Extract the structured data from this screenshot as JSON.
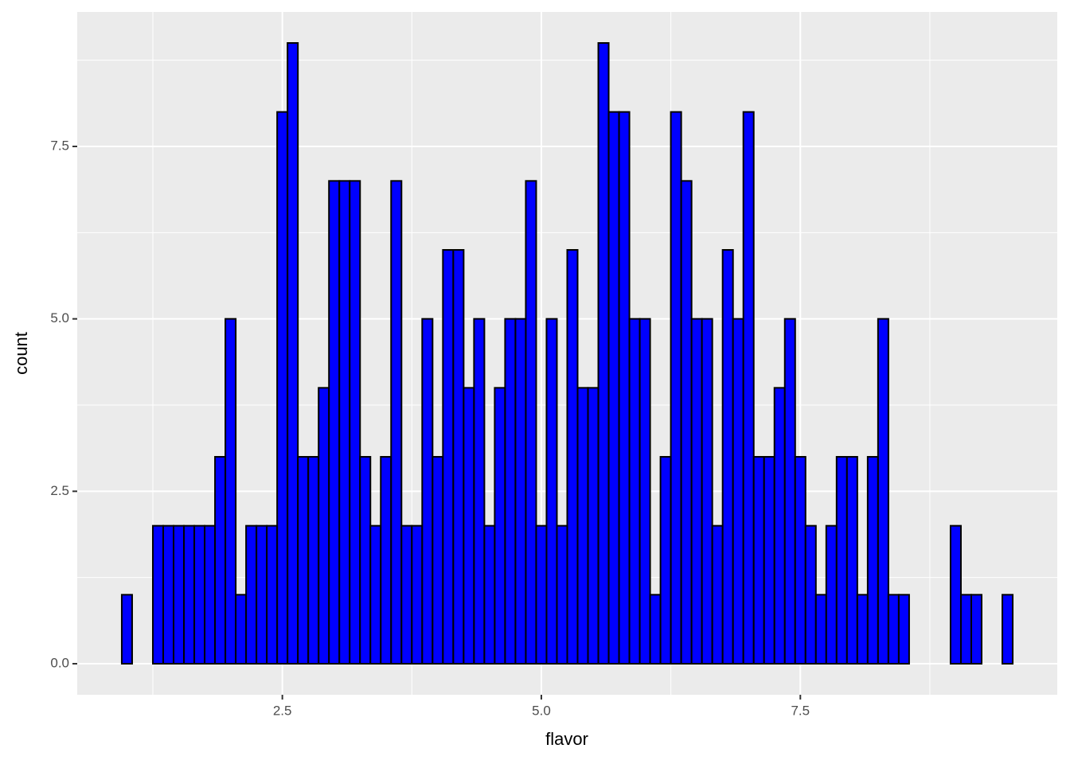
{
  "chart_data": {
    "type": "histogram",
    "x_label": "flavor",
    "y_label": "count",
    "bins": [
      0.95,
      1.05,
      1.15,
      1.25,
      1.35,
      1.45,
      1.55,
      1.65,
      1.75,
      1.85,
      1.95,
      2.05,
      2.15,
      2.25,
      2.35,
      2.45,
      2.55,
      2.65,
      2.75,
      2.85,
      2.95,
      3.05,
      3.15,
      3.25,
      3.35,
      3.45,
      3.55,
      3.65,
      3.75,
      3.85,
      3.95,
      4.05,
      4.15,
      4.25,
      4.35,
      4.45,
      4.55,
      4.65,
      4.75,
      4.85,
      4.95,
      5.05,
      5.15,
      5.25,
      5.35,
      5.45,
      5.55,
      5.65,
      5.75,
      5.85,
      5.95,
      6.05,
      6.15,
      6.25,
      6.35,
      6.45,
      6.55,
      6.65,
      6.75,
      6.85,
      6.95,
      7.05,
      7.15,
      7.25,
      7.35,
      7.45,
      7.55,
      7.65,
      7.75,
      7.85,
      7.95,
      8.05,
      8.15,
      8.25,
      8.35,
      8.45,
      8.55,
      8.65,
      8.75,
      8.85,
      8.95,
      9.05,
      9.15,
      9.25,
      9.35,
      9.45,
      9.55
    ],
    "counts": [
      1,
      0,
      0,
      2,
      2,
      2,
      2,
      2,
      2,
      3,
      5,
      1,
      2,
      2,
      2,
      8,
      9,
      3,
      3,
      4,
      7,
      7,
      7,
      3,
      2,
      3,
      7,
      2,
      2,
      5,
      3,
      6,
      6,
      4,
      5,
      2,
      4,
      5,
      5,
      7,
      2,
      5,
      2,
      6,
      4,
      4,
      9,
      8,
      8,
      5,
      5,
      1,
      3,
      8,
      7,
      5,
      5,
      2,
      6,
      5,
      8,
      3,
      3,
      4,
      5,
      3,
      2,
      1,
      2,
      3,
      3,
      1,
      3,
      5,
      1,
      1,
      0,
      0,
      0,
      0,
      2,
      1,
      1,
      0,
      0,
      1
    ],
    "color": "#0000ff",
    "edge_color": "#000000",
    "xlim": [
      0.52,
      9.98
    ],
    "ylim": [
      -0.45,
      9.45
    ],
    "xticks": [
      2.5,
      {
        "value": 5,
        "label": "5.0"
      },
      7.5
    ],
    "yticks": [
      {
        "value": 0,
        "label": "0.0"
      },
      2.5,
      {
        "value": 5,
        "label": "5.0"
      },
      7.5
    ],
    "grid": true
  }
}
